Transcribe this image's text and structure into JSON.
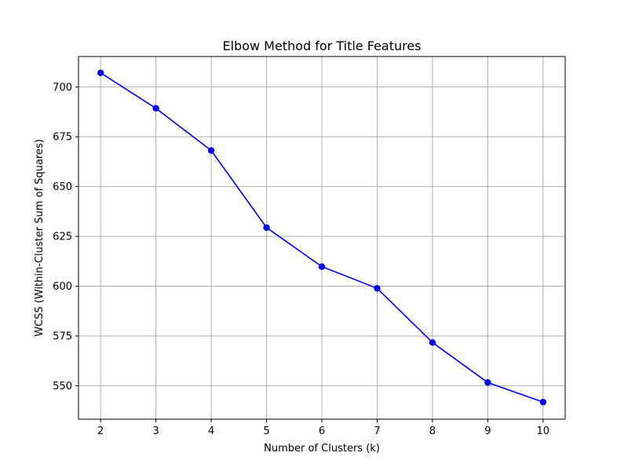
{
  "chart_data": {
    "type": "line",
    "title": "Elbow Method for Title Features",
    "xlabel": "Number of Clusters (k)",
    "ylabel": "WCSS (Within-Cluster Sum of Squares)",
    "x": [
      2,
      3,
      4,
      5,
      6,
      7,
      8,
      9,
      10
    ],
    "xticks": [
      "2",
      "3",
      "4",
      "5",
      "6",
      "7",
      "8",
      "9",
      "10"
    ],
    "yticks": [
      550,
      575,
      600,
      625,
      650,
      675,
      700
    ],
    "xlim": [
      1.6,
      10.4
    ],
    "ylim": [
      533.2,
      715.3
    ],
    "grid": true,
    "series": [
      {
        "values": [
          707.1,
          689.3,
          668.1,
          629.4,
          609.8,
          598.9,
          571.7,
          551.6,
          541.8
        ],
        "color": "#0000ff",
        "marker": "circle"
      }
    ]
  }
}
